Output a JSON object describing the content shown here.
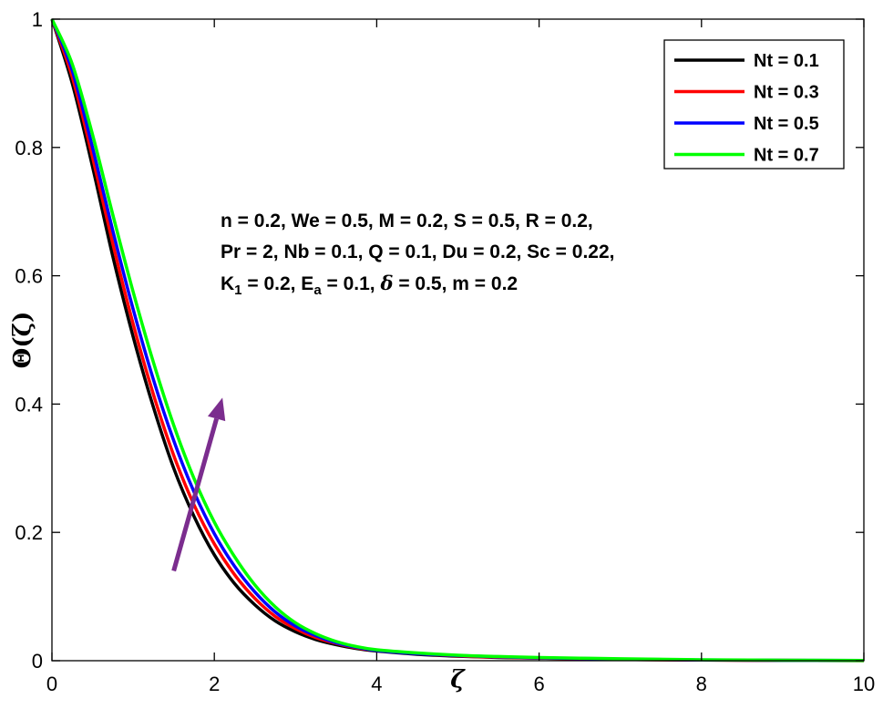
{
  "chart_data": {
    "type": "line",
    "xlabel": "ζ",
    "ylabel": "Θ(ζ)",
    "xlim": [
      0,
      10
    ],
    "ylim": [
      0,
      1
    ],
    "xticks": [
      "0",
      "2",
      "4",
      "6",
      "8",
      "10"
    ],
    "yticks": [
      "0",
      "0.2",
      "0.4",
      "0.6",
      "0.8",
      "1"
    ],
    "grid": false,
    "legend_position": "top-right",
    "x": [
      0,
      0.25,
      0.5,
      0.75,
      1,
      1.25,
      1.5,
      1.75,
      2,
      2.25,
      2.5,
      2.75,
      3,
      3.25,
      3.5,
      3.75,
      4,
      4.5,
      5,
      5.5,
      6,
      7,
      8,
      9,
      10
    ],
    "series": [
      {
        "name": "Nt = 0.1",
        "color": "#000000",
        "values": [
          1,
          0.9,
          0.77,
          0.63,
          0.505,
          0.395,
          0.3,
          0.225,
          0.165,
          0.12,
          0.087,
          0.062,
          0.045,
          0.033,
          0.025,
          0.019,
          0.015,
          0.01,
          0.007,
          0.005,
          0.004,
          0.002,
          0.001,
          0.0005,
          0.0002
        ]
      },
      {
        "name": "Nt = 0.3",
        "color": "#ff0000",
        "values": [
          1,
          0.91,
          0.785,
          0.65,
          0.525,
          0.415,
          0.32,
          0.243,
          0.182,
          0.134,
          0.097,
          0.069,
          0.05,
          0.036,
          0.027,
          0.02,
          0.016,
          0.011,
          0.0075,
          0.0055,
          0.004,
          0.002,
          0.001,
          0.0005,
          0.0002
        ]
      },
      {
        "name": "Nt = 0.5",
        "color": "#0000ff",
        "values": [
          1,
          0.92,
          0.8,
          0.67,
          0.548,
          0.438,
          0.343,
          0.263,
          0.198,
          0.147,
          0.107,
          0.076,
          0.054,
          0.039,
          0.028,
          0.021,
          0.016,
          0.011,
          0.008,
          0.006,
          0.0045,
          0.0025,
          0.0012,
          0.0006,
          0.0003
        ]
      },
      {
        "name": "Nt = 0.7",
        "color": "#00ff00",
        "values": [
          1,
          0.93,
          0.82,
          0.695,
          0.575,
          0.465,
          0.367,
          0.284,
          0.216,
          0.162,
          0.118,
          0.084,
          0.059,
          0.042,
          0.03,
          0.022,
          0.017,
          0.012,
          0.0085,
          0.0065,
          0.005,
          0.003,
          0.0015,
          0.0008,
          0.0004
        ]
      }
    ],
    "annotation_lines": [
      "n = 0.2, We = 0.5, M = 0.2, S = 0.5, R = 0.2,",
      "Pr = 2, Nb = 0.1, Q = 0.1, Du = 0.2, Sc = 0.22,"
    ],
    "annotation_line3": {
      "k": "K",
      "k_sub": "1",
      "k_val": " = 0.2, E",
      "e_sub": "a",
      "e_val": " = 0.1, ",
      "delta": "δ",
      "rest": " = 0.5, m = 0.2"
    },
    "arrow": {
      "from": [
        1.5,
        0.14
      ],
      "to": [
        2.1,
        0.41
      ],
      "color": "#7b2d8e",
      "meaning": "increasing Nt"
    }
  }
}
